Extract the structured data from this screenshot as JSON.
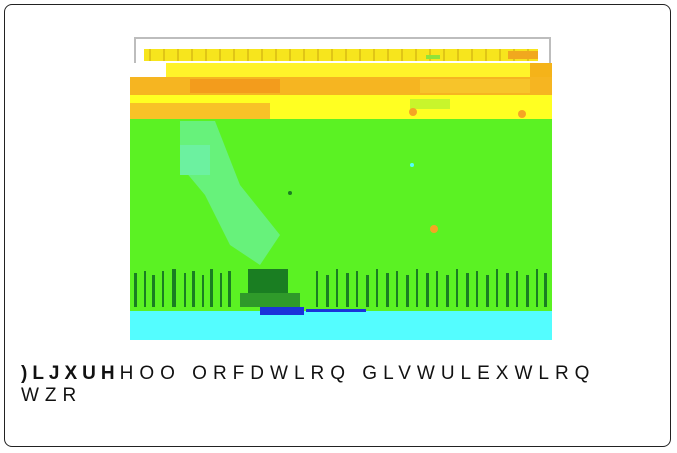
{
  "caption": {
    "lead": ")LJXUH",
    "rest": "HOO ORFDWLRQ GLVWULEXWLRQ",
    "line2": "WZR"
  },
  "figure": {
    "colors": {
      "frame": "#bdbdbd",
      "top_yellow": "#f7e51d",
      "orange_band": "#f5b319",
      "bright_yellow": "#ffff22",
      "green": "#5bf223",
      "pale_green": "#67f27b",
      "dark_green": "#1a7e22",
      "cyan": "#54fdff",
      "blue": "#1b33d9",
      "orange_dot": "#f5a524"
    }
  }
}
